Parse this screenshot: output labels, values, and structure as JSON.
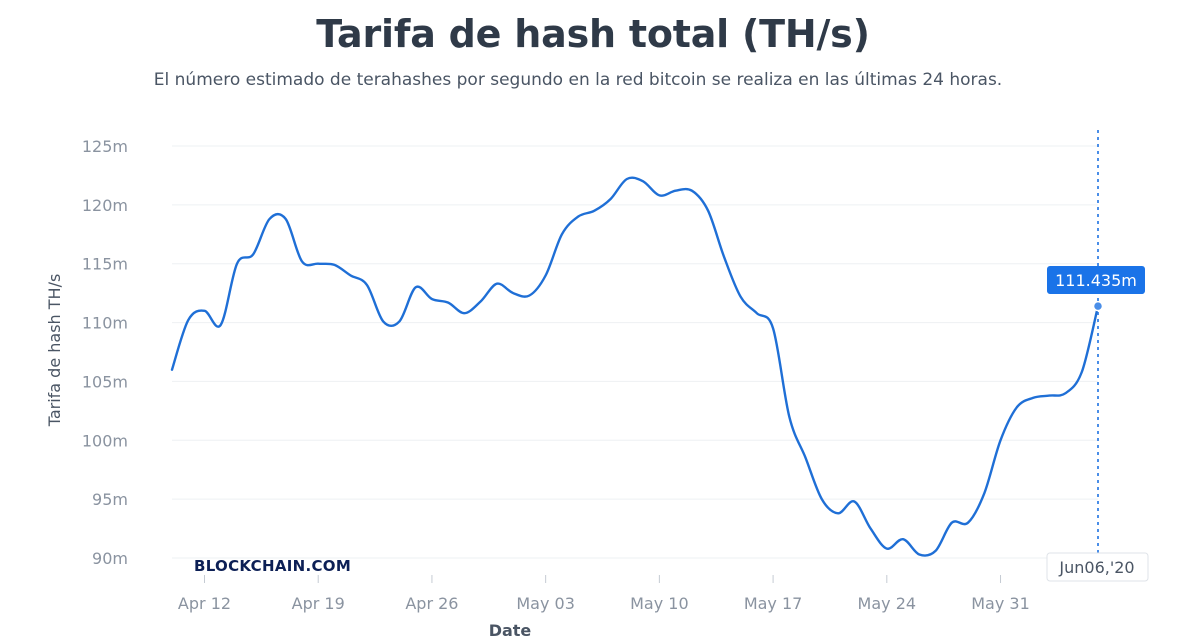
{
  "header": {
    "title": "Tarifa de hash total (TH/s)",
    "subtitle": "El número estimado de terahashes por segundo en la red bitcoin se realiza en las últimas 24 horas."
  },
  "watermark": "BLOCKCHAIN.COM",
  "tooltip": {
    "value_label": "111.435m",
    "date_label": "Jun06,'20"
  },
  "colors": {
    "line": "#1f6fd6",
    "tooltip_bg": "#1a73e8",
    "grid": "#eef0f3",
    "cursor": "#4a8ee8"
  },
  "chart_data": {
    "type": "line",
    "title": "Tarifa de hash total (TH/s)",
    "xlabel": "Date",
    "ylabel": "Tarifa de hash TH/s",
    "ylim": [
      90,
      125
    ],
    "grid": true,
    "ytick_values": [
      90,
      95,
      100,
      105,
      110,
      115,
      120,
      125
    ],
    "ytick_labels": [
      "90m",
      "95m",
      "100m",
      "105m",
      "110m",
      "115m",
      "120m",
      "125m"
    ],
    "xtick_values": [
      "2020-04-12",
      "2020-04-19",
      "2020-04-26",
      "2020-05-03",
      "2020-05-10",
      "2020-05-17",
      "2020-05-24",
      "2020-05-31"
    ],
    "xtick_labels": [
      "Apr 12",
      "Apr 19",
      "Apr 26",
      "May 03",
      "May 10",
      "May 17",
      "May 24",
      "May 31"
    ],
    "xlim": [
      "2020-04-10",
      "2020-06-06"
    ],
    "series": [
      {
        "x": [
          "2020-04-10",
          "2020-04-11",
          "2020-04-12",
          "2020-04-13",
          "2020-04-14",
          "2020-04-15",
          "2020-04-16",
          "2020-04-17",
          "2020-04-18",
          "2020-04-19",
          "2020-04-20",
          "2020-04-21",
          "2020-04-22",
          "2020-04-23",
          "2020-04-24",
          "2020-04-25",
          "2020-04-26",
          "2020-04-27",
          "2020-04-28",
          "2020-04-29",
          "2020-04-30",
          "2020-05-01",
          "2020-05-02",
          "2020-05-03",
          "2020-05-04",
          "2020-05-05",
          "2020-05-06",
          "2020-05-07",
          "2020-05-08",
          "2020-05-09",
          "2020-05-10",
          "2020-05-11",
          "2020-05-12",
          "2020-05-13",
          "2020-05-14",
          "2020-05-15",
          "2020-05-16",
          "2020-05-17",
          "2020-05-18",
          "2020-05-19",
          "2020-05-20",
          "2020-05-21",
          "2020-05-22",
          "2020-05-23",
          "2020-05-24",
          "2020-05-25",
          "2020-05-26",
          "2020-05-27",
          "2020-05-28",
          "2020-05-29",
          "2020-05-30",
          "2020-05-31",
          "2020-06-01",
          "2020-06-02",
          "2020-06-03",
          "2020-06-04",
          "2020-06-05",
          "2020-06-06"
        ],
        "values": [
          106.0,
          110.2,
          111.0,
          109.8,
          115.0,
          115.8,
          118.8,
          118.8,
          115.2,
          115.0,
          114.9,
          114.0,
          113.2,
          110.1,
          110.1,
          113.0,
          112.0,
          111.7,
          110.8,
          111.8,
          113.3,
          112.5,
          112.3,
          114.0,
          117.5,
          119.0,
          119.5,
          120.5,
          122.2,
          122.0,
          120.8,
          121.2,
          121.2,
          119.5,
          115.5,
          112.2,
          110.8,
          109.5,
          102.0,
          98.5,
          95.0,
          93.8,
          94.8,
          92.5,
          90.8,
          91.6,
          90.3,
          90.6,
          93.0,
          93.0,
          95.5,
          100.0,
          102.8,
          103.6,
          103.8,
          104.0,
          105.8,
          111.4
        ]
      }
    ]
  }
}
